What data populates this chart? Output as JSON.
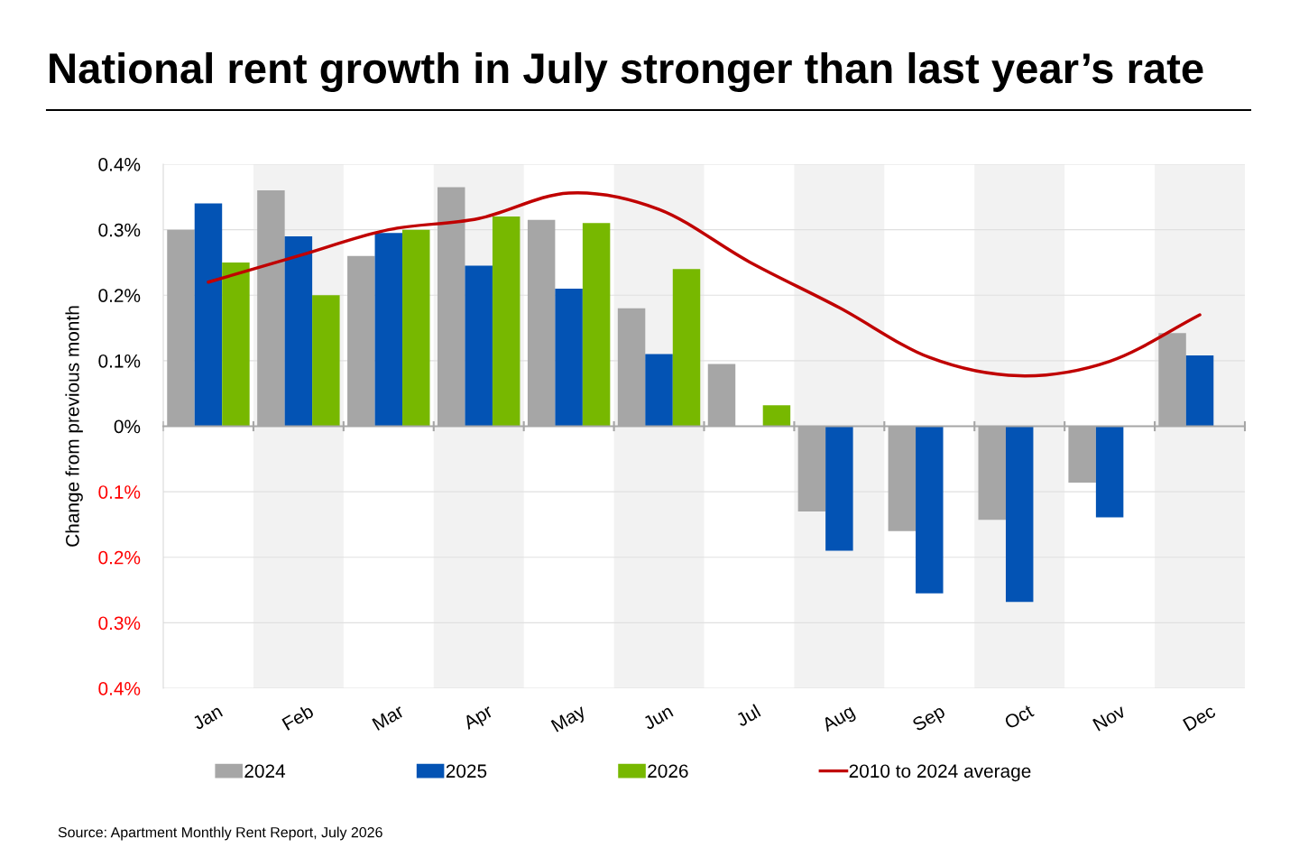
{
  "chart_data": {
    "type": "bar",
    "title": "National rent growth in July stronger than last year’s rate",
    "ylabel": "Change from previous month",
    "categories": [
      "Jan",
      "Feb",
      "Mar",
      "Apr",
      "May",
      "Jun",
      "Jul",
      "Aug",
      "Sep",
      "Oct",
      "Nov",
      "Dec"
    ],
    "series": [
      {
        "name": "2024",
        "color": "#a6a6a6",
        "values": [
          0.3,
          0.36,
          0.26,
          0.365,
          0.315,
          0.18,
          0.095,
          -0.13,
          -0.16,
          -0.143,
          -0.086,
          0.142
        ]
      },
      {
        "name": "2025",
        "color": "#0353b4",
        "values": [
          0.34,
          0.29,
          0.295,
          0.245,
          0.21,
          0.11,
          null,
          -0.19,
          -0.255,
          -0.268,
          -0.139,
          0.108
        ]
      },
      {
        "name": "2026",
        "color": "#77b800",
        "values": [
          0.25,
          0.2,
          0.3,
          0.32,
          0.31,
          0.24,
          0.032,
          null,
          null,
          null,
          null,
          null
        ]
      },
      {
        "name": "2010 to 2024 average",
        "type": "line",
        "color": "#c00000",
        "values": [
          0.22,
          0.26,
          0.3,
          0.317,
          0.356,
          0.331,
          0.251,
          0.181,
          0.105,
          0.077,
          0.099,
          0.17
        ]
      }
    ],
    "ylim": [
      -0.4,
      0.4
    ],
    "yticks": [
      {
        "value": -0.4,
        "label": "0.4%"
      },
      {
        "value": -0.3,
        "label": "0.3%"
      },
      {
        "value": -0.2,
        "label": "0.2%"
      },
      {
        "value": -0.1,
        "label": "0.1%"
      },
      {
        "value": 0,
        "label": "0%"
      },
      {
        "value": 0.1,
        "label": "0.1%"
      },
      {
        "value": 0.2,
        "label": "0.2%"
      },
      {
        "value": 0.3,
        "label": "0.3%"
      },
      {
        "value": 0.4,
        "label": "0.4%"
      }
    ],
    "bands": [
      {
        "axis": "x",
        "from": "Feb",
        "to": "Feb",
        "color": "#f2f2f2"
      },
      {
        "axis": "x",
        "from": "Apr",
        "to": "Apr",
        "color": "#f2f2f2"
      },
      {
        "axis": "x",
        "from": "Jun",
        "to": "Jun",
        "color": "#f2f2f2"
      },
      {
        "axis": "x",
        "from": "Aug",
        "to": "Aug",
        "color": "#f2f2f2"
      },
      {
        "axis": "x",
        "from": "Oct",
        "to": "Oct",
        "color": "#f2f2f2"
      },
      {
        "axis": "x",
        "from": "Dec",
        "to": "Dec",
        "color": "#f2f2f2"
      }
    ],
    "grid": "y",
    "legend": "bottom",
    "annotations": [
      "Source: Apartment Monthly Rent Report, July 2026"
    ]
  }
}
